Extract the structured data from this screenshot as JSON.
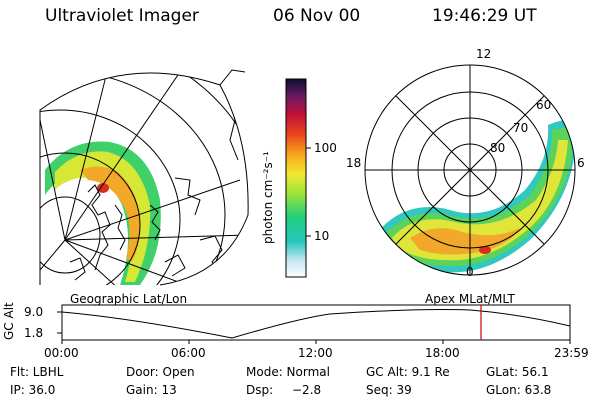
{
  "header": {
    "title": "Ultraviolet Imager",
    "date": "06 Nov 00",
    "time": "19:46:29 UT"
  },
  "colorbar": {
    "unit_label": "photon cm⁻²s⁻¹",
    "ticks": [
      "100",
      "10"
    ]
  },
  "polar_plot": {
    "mlt_labels": [
      "12",
      "18",
      "6",
      "0"
    ],
    "lat_labels": [
      "60",
      "70",
      "80"
    ]
  },
  "panel_labels": {
    "left": "Geographic Lat/Lon",
    "right": "Apex MLat/MLT"
  },
  "altitude_plot": {
    "ylabel": "GC Alt",
    "yticks": [
      "9.0",
      "1.8"
    ],
    "xticks": [
      "00:00",
      "06:00",
      "12:00",
      "18:00",
      "23:59"
    ]
  },
  "info": {
    "row1": [
      "Flt: LBHL",
      "Door: Open",
      "Mode: Normal",
      "GC Alt: 9.1 Re",
      "GLat: 56.1"
    ],
    "row2": [
      "IP: 36.0",
      "Gain: 13",
      "Dsp: ",
      "−2.8",
      "Seq: 39",
      "GLon: 63.8"
    ]
  },
  "colors": {
    "marker": "#d00000"
  }
}
